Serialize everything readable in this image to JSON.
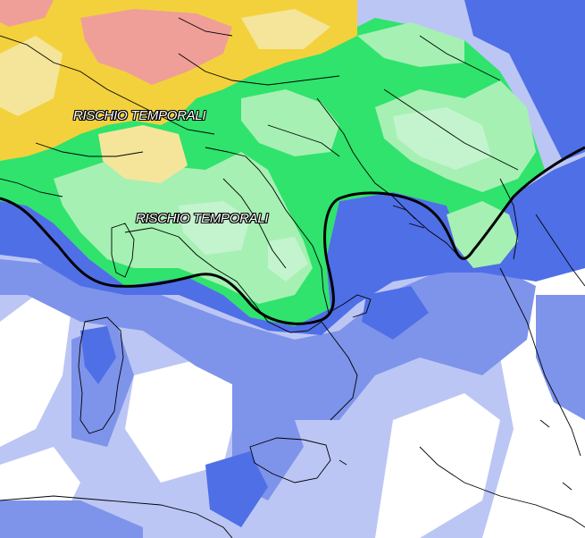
{
  "map": {
    "labels": [
      "RISCHIO TEMPORALI",
      "RISCHIO TEMPORALI"
    ],
    "colors": {
      "yellow": "#f3d13d",
      "pale_yellow": "#f5e59a",
      "pink": "#ef9f97",
      "bright_green": "#2fe36d",
      "light_green": "#a6f0b3",
      "mint": "#c3f4ce",
      "blue": "#4f6fe6",
      "mid_blue": "#7e93ea",
      "light_blue": "#bcc6f4",
      "white": "#ffffff",
      "front_line": "#000000",
      "coast_line": "#000000"
    }
  }
}
